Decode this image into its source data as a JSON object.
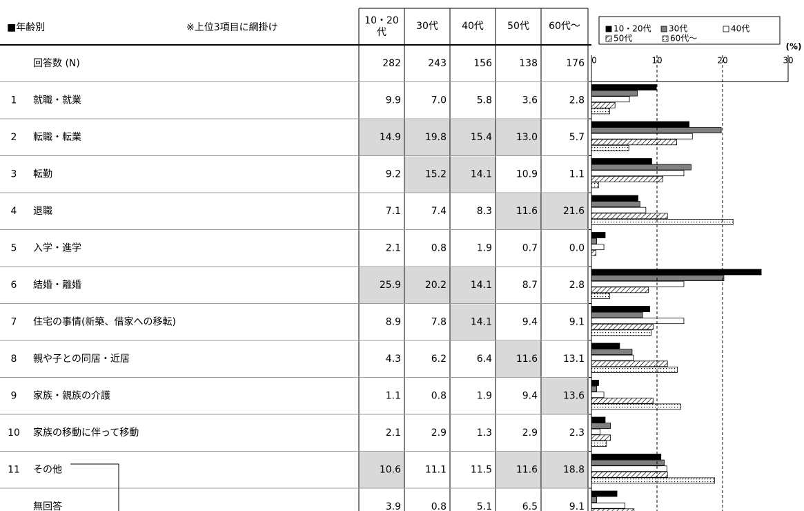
{
  "table": {
    "title": "■年齢別",
    "note": "※上位3項目に網掛け",
    "columns": [
      "10・20代",
      "30代",
      "40代",
      "50代",
      "60代～"
    ],
    "rows": [
      {
        "label": "回答数 (N)",
        "values": [
          282,
          243,
          156,
          138,
          176
        ]
      },
      {
        "no": "1",
        "label": "就職・就業",
        "values": [
          9.9,
          7.0,
          5.8,
          3.6,
          2.8
        ],
        "value_labels": [
          "9.9",
          "7.0",
          "5.8",
          "3.6",
          "2.8"
        ],
        "shaded": [
          false,
          false,
          false,
          false,
          false
        ]
      },
      {
        "no": "2",
        "label": "転職・転業",
        "values": [
          14.9,
          19.8,
          15.4,
          13.0,
          5.7
        ],
        "value_labels": [
          "14.9",
          "19.8",
          "15.4",
          "13.0",
          "5.7"
        ],
        "shaded": [
          true,
          true,
          true,
          true,
          false
        ]
      },
      {
        "no": "3",
        "label": "転勤",
        "values": [
          9.2,
          15.2,
          14.1,
          10.9,
          1.1
        ],
        "shaded": [
          false,
          true,
          true,
          false,
          false
        ]
      },
      {
        "no": "4",
        "label": "退職",
        "values": [
          7.1,
          7.4,
          8.3,
          11.6,
          21.6
        ],
        "shaded": [
          false,
          false,
          false,
          true,
          true
        ]
      },
      {
        "no": "5",
        "label": "入学・進学",
        "values": [
          2.1,
          0.8,
          1.9,
          0.7,
          0.0
        ],
        "value_labels": [
          "2.1",
          "0.8",
          "1.9",
          "0.7",
          "0.0"
        ],
        "shaded": [
          false,
          false,
          false,
          false,
          false
        ]
      },
      {
        "no": "6",
        "label": "結婚・離婚",
        "values": [
          25.9,
          20.2,
          14.1,
          8.7,
          2.8
        ],
        "shaded": [
          true,
          true,
          true,
          false,
          false
        ]
      },
      {
        "no": "7",
        "label": "住宅の事情(新築、借家への移転)",
        "values": [
          8.9,
          7.8,
          14.1,
          9.4,
          9.1
        ],
        "shaded": [
          false,
          false,
          true,
          false,
          false
        ]
      },
      {
        "no": "8",
        "label": "親や子との同居・近居",
        "values": [
          4.3,
          6.2,
          6.4,
          11.6,
          13.1
        ],
        "shaded": [
          false,
          false,
          false,
          true,
          false
        ]
      },
      {
        "no": "9",
        "label": "家族・親族の介護",
        "values": [
          1.1,
          0.8,
          1.9,
          9.4,
          13.6
        ],
        "shaded": [
          false,
          false,
          false,
          false,
          true
        ]
      },
      {
        "no": "10",
        "label": "家族の移動に伴って移動",
        "values": [
          2.1,
          2.9,
          1.3,
          2.9,
          2.3
        ],
        "shaded": [
          false,
          false,
          false,
          false,
          false
        ]
      },
      {
        "no": "11",
        "label": "その他",
        "values": [
          10.6,
          11.1,
          11.5,
          11.6,
          18.8
        ],
        "shaded": [
          true,
          false,
          false,
          true,
          true
        ]
      },
      {
        "label": "無回答",
        "values": [
          3.9,
          0.8,
          5.1,
          6.5,
          9.1
        ],
        "shaded": [
          false,
          false,
          false,
          false,
          false
        ]
      }
    ]
  },
  "chart_data": {
    "type": "bar",
    "orientation": "horizontal",
    "unit": "(%)",
    "xlim": [
      0,
      30
    ],
    "xticks": [
      0,
      10,
      20,
      30
    ],
    "fills": [
      "solid-black",
      "solid-gray",
      "solid-white",
      "hatch",
      "dots"
    ],
    "grid": "dashed"
  }
}
